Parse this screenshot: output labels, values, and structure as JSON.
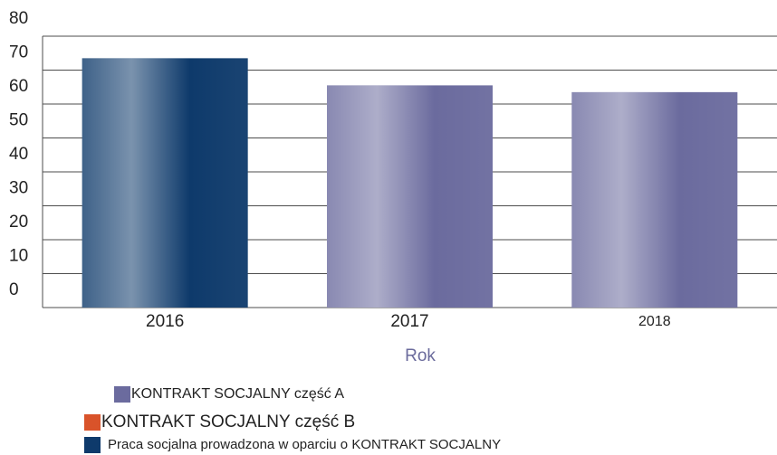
{
  "chart_data": {
    "type": "bar",
    "categories": [
      "2016",
      "2017",
      "2018"
    ],
    "x_label": "Rok",
    "series": [
      {
        "name": "KONTRAKT SOCJALNY część A",
        "color": "#6b6b9e",
        "values": [
          null,
          65.5,
          63.5
        ]
      },
      {
        "name": "KONTRAKT SOCJALNY część B",
        "color": "#d9532a",
        "values": [
          null,
          null,
          null
        ]
      },
      {
        "name": "Praca socjalna prowadzona w oparciu o KONTRAKT SOCJALNY",
        "color": "#0e3a6b",
        "values": [
          73.5,
          null,
          null
        ]
      }
    ],
    "ylim": [
      0,
      80
    ],
    "yticks": [
      0,
      10,
      20,
      30,
      40,
      50,
      60,
      70,
      80
    ],
    "grid": true
  }
}
